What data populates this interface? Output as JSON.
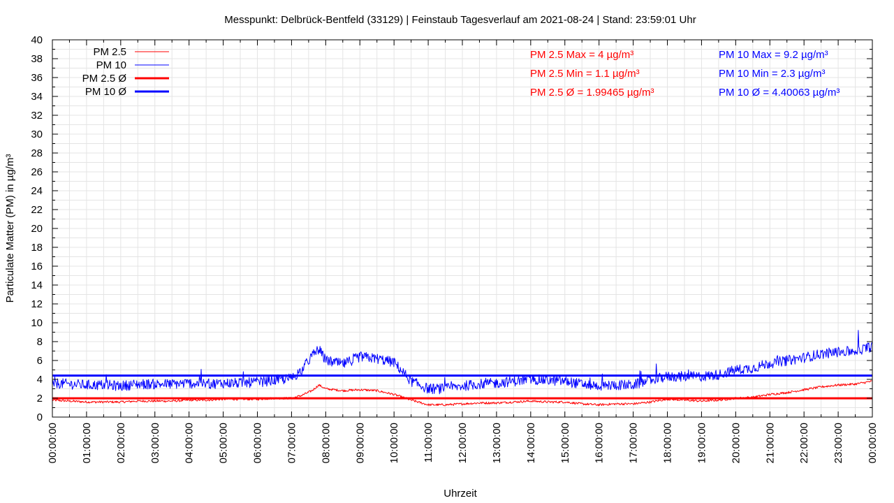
{
  "chart_data": {
    "type": "line",
    "title": "Messpunkt: Delbrück-Bentfeld (33129) | Feinstaub Tagesverlauf am 2021-08-24 | Stand: 23:59:01 Uhr",
    "xlabel": "Uhrzeit",
    "ylabel": "Particulate Matter (PM) in µg/m³",
    "ylim": [
      0,
      40
    ],
    "yticks": [
      0,
      2,
      4,
      6,
      8,
      10,
      12,
      14,
      16,
      18,
      20,
      22,
      24,
      26,
      28,
      30,
      32,
      34,
      36,
      38,
      40
    ],
    "xlim": [
      0,
      24
    ],
    "xtick_labels": [
      "00:00:00",
      "01:00:00",
      "02:00:00",
      "03:00:00",
      "04:00:00",
      "05:00:00",
      "06:00:00",
      "07:00:00",
      "08:00:00",
      "09:00:00",
      "10:00:00",
      "11:00:00",
      "12:00:00",
      "13:00:00",
      "14:00:00",
      "15:00:00",
      "16:00:00",
      "17:00:00",
      "18:00:00",
      "19:00:00",
      "20:00:00",
      "21:00:00",
      "22:00:00",
      "23:00:00",
      "00:00:00"
    ],
    "grid": true,
    "legend_position": "top-left",
    "series": [
      {
        "name": "PM 2.5",
        "color": "#ff0000",
        "x": [
          0,
          0.5,
          1,
          1.5,
          2,
          2.5,
          3,
          3.5,
          4,
          4.5,
          5,
          5.5,
          6,
          6.5,
          7,
          7.3,
          7.6,
          7.8,
          8,
          8.5,
          9,
          9.5,
          10,
          10.5,
          11,
          11.5,
          12,
          12.5,
          13,
          13.5,
          14,
          14.5,
          15,
          15.5,
          16,
          16.5,
          17,
          17.5,
          18,
          18.5,
          19,
          19.5,
          20,
          20.5,
          21,
          21.5,
          22,
          22.5,
          23,
          23.5,
          24
        ],
        "values": [
          1.8,
          1.7,
          1.6,
          1.6,
          1.6,
          1.7,
          1.7,
          1.7,
          1.8,
          1.8,
          1.9,
          1.9,
          1.9,
          2.0,
          2.0,
          2.3,
          2.8,
          3.4,
          3.0,
          2.8,
          2.9,
          2.8,
          2.4,
          1.8,
          1.3,
          1.3,
          1.4,
          1.5,
          1.5,
          1.6,
          1.7,
          1.6,
          1.6,
          1.4,
          1.3,
          1.4,
          1.4,
          1.6,
          1.9,
          1.8,
          1.7,
          1.8,
          2.0,
          2.1,
          2.4,
          2.6,
          2.9,
          3.2,
          3.4,
          3.5,
          3.8
        ]
      },
      {
        "name": "PM 10",
        "color": "#0000ff",
        "x": [
          0,
          0.5,
          1,
          1.5,
          2,
          2.5,
          3,
          3.5,
          4,
          4.5,
          5,
          5.5,
          6,
          6.5,
          7,
          7.3,
          7.6,
          7.8,
          8,
          8.5,
          9,
          9.5,
          10,
          10.5,
          11,
          11.5,
          12,
          12.5,
          13,
          13.5,
          14,
          14.5,
          15,
          15.5,
          16,
          16.5,
          17,
          17.5,
          18,
          18.5,
          19,
          19.5,
          20,
          20.5,
          21,
          21.5,
          22,
          22.5,
          23,
          23.5,
          24
        ],
        "values": [
          3.6,
          3.5,
          3.4,
          3.4,
          3.3,
          3.5,
          3.5,
          3.5,
          3.6,
          3.5,
          3.6,
          3.6,
          3.7,
          3.9,
          4.1,
          5.0,
          6.5,
          7.2,
          6.0,
          5.6,
          6.4,
          6.2,
          5.8,
          3.8,
          3.0,
          3.0,
          3.3,
          3.5,
          3.6,
          3.8,
          4.0,
          3.9,
          3.8,
          3.5,
          3.3,
          3.4,
          3.4,
          3.9,
          4.3,
          4.3,
          4.3,
          4.5,
          5.0,
          5.2,
          5.7,
          6.0,
          6.3,
          6.7,
          6.9,
          7.0,
          7.5
        ]
      },
      {
        "name": "PM 2.5 Ø",
        "color": "#ff0000",
        "x": [
          0,
          24
        ],
        "values": [
          1.99465,
          1.99465
        ]
      },
      {
        "name": "PM 10 Ø",
        "color": "#0000ff",
        "x": [
          0,
          24
        ],
        "values": [
          4.40063,
          4.40063
        ]
      }
    ],
    "annotations": [
      {
        "text": "PM 2.5 Max = 4 µg/m³",
        "color": "#ff0000"
      },
      {
        "text": "PM 2.5 Min = 1.1 µg/m³",
        "color": "#ff0000"
      },
      {
        "text": "PM 2.5 Ø = 1.99465 µg/m³",
        "color": "#ff0000"
      },
      {
        "text": "PM 10 Max = 9.2 µg/m³",
        "color": "#0000ff"
      },
      {
        "text": "PM 10 Min = 2.3 µg/m³",
        "color": "#0000ff"
      },
      {
        "text": "PM 10 Ø = 4.40063 µg/m³",
        "color": "#0000ff"
      }
    ]
  }
}
